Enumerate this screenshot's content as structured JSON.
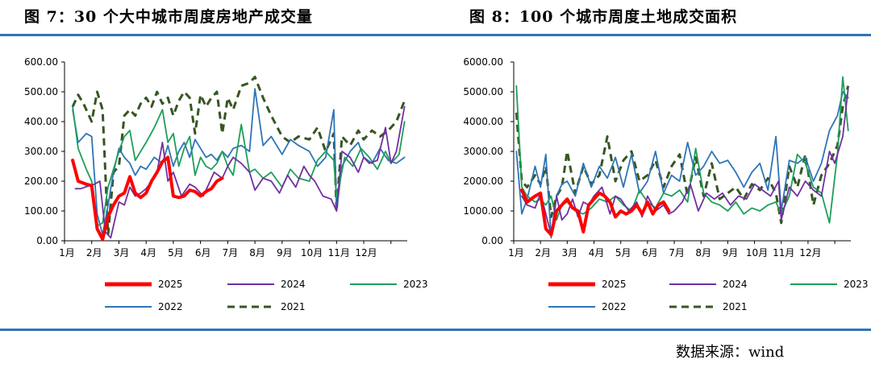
{
  "header": {
    "left_title": "图 7：30 个大中城市周度房地产成交量",
    "right_title": "图 8：100 个城市周度土地成交面积"
  },
  "footer": {
    "source": "数据来源：wind"
  },
  "colors": {
    "rule": "#2E75B6",
    "s2025": "#FF0000",
    "s2024": "#7030A0",
    "s2023": "#1E9E5A",
    "s2022": "#2E75B6",
    "s2021": "#375623"
  },
  "chart_data": [
    {
      "type": "line",
      "title": "图 7：30 个大中城市周度房地产成交量",
      "categories": [
        "1月",
        "2月",
        "3月",
        "4月",
        "5月",
        "6月",
        "7月",
        "8月",
        "9月",
        "10月",
        "11月",
        "12月"
      ],
      "ylim": [
        0,
        600
      ],
      "yticks": [
        "0.00",
        "100.00",
        "200.00",
        "300.00",
        "400.00",
        "500.00",
        "600.00"
      ],
      "xlabel": "",
      "ylabel": "",
      "legend": "bottom",
      "series": [
        {
          "name": "2025",
          "style": "thick",
          "x": [
            0.3,
            0.5,
            0.8,
            1.0,
            1.2,
            1.4,
            1.6,
            1.8,
            2.0,
            2.2,
            2.4,
            2.6,
            2.8,
            3.0,
            3.2,
            3.4,
            3.6,
            3.8,
            4.0,
            4.2,
            4.4,
            4.6,
            4.8,
            5.0,
            5.2,
            5.4,
            5.6,
            5.8
          ],
          "values": [
            270,
            200,
            190,
            185,
            40,
            5,
            80,
            120,
            150,
            160,
            215,
            160,
            145,
            160,
            200,
            230,
            265,
            280,
            150,
            145,
            150,
            170,
            165,
            150,
            165,
            175,
            200,
            210
          ]
        },
        {
          "name": "2024",
          "style": "solid",
          "x": [
            0.4,
            0.6,
            0.9,
            1.1,
            1.3,
            1.5,
            1.7,
            2.0,
            2.2,
            2.4,
            2.6,
            2.8,
            3.0,
            3.2,
            3.4,
            3.6,
            3.8,
            4.0,
            4.3,
            4.6,
            4.8,
            5.1,
            5.3,
            5.5,
            5.8,
            6.0,
            6.2,
            6.5,
            6.8,
            7.0,
            7.3,
            7.6,
            7.9,
            8.2,
            8.5,
            8.8,
            9.0,
            9.2,
            9.5,
            9.8,
            10.0,
            10.2,
            10.5,
            10.8,
            11.0,
            11.2,
            11.5,
            11.8,
            12.0,
            12.2,
            12.5
          ],
          "values": [
            175,
            175,
            185,
            190,
            200,
            30,
            10,
            130,
            120,
            180,
            150,
            160,
            175,
            200,
            230,
            330,
            200,
            230,
            150,
            190,
            180,
            150,
            190,
            230,
            210,
            250,
            280,
            260,
            230,
            170,
            210,
            200,
            160,
            220,
            180,
            250,
            220,
            200,
            150,
            140,
            100,
            300,
            280,
            230,
            280,
            260,
            270,
            380,
            260,
            300,
            450
          ]
        },
        {
          "name": "2023",
          "style": "solid",
          "x": [
            0.3,
            0.5,
            0.8,
            1.0,
            1.2,
            1.4,
            1.6,
            1.8,
            2.0,
            2.2,
            2.4,
            2.6,
            2.8,
            3.0,
            3.3,
            3.6,
            3.8,
            4.0,
            4.2,
            4.4,
            4.6,
            4.8,
            5.0,
            5.2,
            5.4,
            5.6,
            5.8,
            6.0,
            6.2,
            6.5,
            6.8,
            7.0,
            7.3,
            7.6,
            8.0,
            8.3,
            8.6,
            9.0,
            9.3,
            9.6,
            9.9,
            10.0,
            10.3,
            10.6,
            10.9,
            11.2,
            11.5,
            11.8,
            12.0,
            12.3,
            12.5
          ],
          "values": [
            450,
            310,
            240,
            200,
            50,
            60,
            180,
            240,
            300,
            350,
            370,
            270,
            300,
            330,
            380,
            440,
            330,
            360,
            250,
            310,
            350,
            220,
            280,
            250,
            240,
            260,
            300,
            250,
            220,
            390,
            230,
            240,
            210,
            230,
            180,
            240,
            210,
            200,
            270,
            300,
            270,
            140,
            280,
            250,
            310,
            280,
            240,
            300,
            260,
            290,
            400
          ]
        },
        {
          "name": "2022",
          "style": "solid",
          "x": [
            0.3,
            0.5,
            0.8,
            1.0,
            1.2,
            1.4,
            1.6,
            1.8,
            2.0,
            2.2,
            2.4,
            2.6,
            2.8,
            3.0,
            3.3,
            3.6,
            3.8,
            4.0,
            4.2,
            4.4,
            4.6,
            4.8,
            5.0,
            5.2,
            5.4,
            5.6,
            5.8,
            6.0,
            6.2,
            6.5,
            6.8,
            7.0,
            7.3,
            7.6,
            8.0,
            8.3,
            8.6,
            9.0,
            9.3,
            9.6,
            9.9,
            10.0,
            10.2,
            10.5,
            10.8,
            11.0,
            11.3,
            11.6,
            11.9,
            12.2,
            12.5
          ],
          "values": [
            440,
            330,
            360,
            350,
            90,
            20,
            120,
            230,
            310,
            280,
            260,
            220,
            250,
            240,
            280,
            260,
            320,
            250,
            300,
            330,
            280,
            340,
            310,
            280,
            290,
            270,
            300,
            280,
            310,
            320,
            300,
            510,
            320,
            350,
            290,
            340,
            320,
            300,
            250,
            280,
            440,
            100,
            250,
            300,
            330,
            280,
            260,
            310,
            270,
            260,
            280
          ]
        },
        {
          "name": "2021",
          "style": "dashed",
          "x": [
            0.3,
            0.5,
            0.7,
            1.0,
            1.2,
            1.4,
            1.6,
            1.8,
            2.0,
            2.2,
            2.4,
            2.6,
            2.8,
            3.0,
            3.2,
            3.4,
            3.6,
            3.8,
            4.0,
            4.2,
            4.4,
            4.6,
            4.8,
            5.0,
            5.2,
            5.4,
            5.6,
            5.8,
            6.0,
            6.2,
            6.5,
            6.8,
            7.0,
            7.3,
            7.6,
            8.0,
            8.3,
            8.6,
            9.0,
            9.3,
            9.6,
            9.9,
            10.0,
            10.2,
            10.5,
            10.8,
            11.0,
            11.3,
            11.6,
            11.9,
            12.2,
            12.5
          ],
          "values": [
            450,
            490,
            460,
            400,
            500,
            440,
            20,
            230,
            250,
            420,
            440,
            420,
            460,
            480,
            450,
            500,
            460,
            480,
            420,
            470,
            500,
            480,
            360,
            490,
            450,
            480,
            500,
            360,
            480,
            440,
            520,
            530,
            550,
            480,
            420,
            350,
            330,
            350,
            340,
            380,
            300,
            360,
            100,
            350,
            320,
            370,
            340,
            370,
            350,
            370,
            400,
            470
          ]
        }
      ]
    },
    {
      "type": "line",
      "title": "图 8：100 个城市周度土地成交面积",
      "categories": [
        "1月",
        "2月",
        "3月",
        "4月",
        "5月",
        "6月",
        "7月",
        "8月",
        "9月",
        "10月",
        "11月",
        "12月"
      ],
      "ylim": [
        0,
        6000
      ],
      "yticks": [
        "0.00",
        "1000.00",
        "2000.00",
        "3000.00",
        "4000.00",
        "5000.00",
        "6000.00"
      ],
      "xlabel": "",
      "ylabel": "",
      "legend": "bottom",
      "series": [
        {
          "name": "2025",
          "style": "thick",
          "x": [
            0.3,
            0.5,
            0.8,
            1.0,
            1.2,
            1.4,
            1.6,
            1.8,
            2.0,
            2.2,
            2.4,
            2.6,
            2.8,
            3.0,
            3.2,
            3.4,
            3.6,
            3.8,
            4.0,
            4.2,
            4.4,
            4.6,
            4.8,
            5.0,
            5.2,
            5.4,
            5.6,
            5.8
          ],
          "values": [
            1700,
            1300,
            1500,
            1600,
            400,
            200,
            1000,
            1200,
            1400,
            1100,
            1000,
            300,
            1200,
            1400,
            1600,
            1500,
            1300,
            800,
            1000,
            900,
            1000,
            1200,
            900,
            1300,
            900,
            1200,
            1300,
            1000
          ]
        },
        {
          "name": "2024",
          "style": "solid",
          "x": [
            0.3,
            0.5,
            0.8,
            1.0,
            1.2,
            1.4,
            1.6,
            1.8,
            2.0,
            2.2,
            2.4,
            2.6,
            2.8,
            3.0,
            3.3,
            3.6,
            3.8,
            4.0,
            4.3,
            4.6,
            4.8,
            5.0,
            5.3,
            5.6,
            5.8,
            6.0,
            6.3,
            6.6,
            6.9,
            7.2,
            7.5,
            7.8,
            8.1,
            8.4,
            8.7,
            9.0,
            9.3,
            9.6,
            9.9,
            10.0,
            10.3,
            10.6,
            10.9,
            11.2,
            11.5,
            11.8,
            12.0,
            12.3,
            12.5
          ],
          "values": [
            1500,
            1200,
            1100,
            1600,
            900,
            200,
            1500,
            700,
            900,
            1400,
            800,
            1300,
            1200,
            1500,
            1800,
            900,
            1500,
            1400,
            1000,
            1300,
            800,
            1500,
            1000,
            1200,
            900,
            1000,
            1300,
            1900,
            1000,
            1600,
            1400,
            1600,
            1200,
            1500,
            1400,
            1900,
            1700,
            1500,
            2000,
            700,
            1800,
            1500,
            2000,
            1700,
            1500,
            3000,
            2600,
            3500,
            5100
          ]
        },
        {
          "name": "2023",
          "style": "solid",
          "x": [
            0.1,
            0.3,
            0.5,
            0.8,
            1.0,
            1.2,
            1.4,
            1.6,
            1.8,
            2.0,
            2.3,
            2.6,
            2.9,
            3.2,
            3.5,
            3.8,
            4.1,
            4.4,
            4.7,
            5.0,
            5.3,
            5.6,
            5.9,
            6.2,
            6.5,
            6.8,
            7.1,
            7.4,
            7.7,
            8.0,
            8.3,
            8.6,
            8.9,
            9.2,
            9.5,
            9.8,
            10.0,
            10.3,
            10.6,
            10.9,
            11.2,
            11.5,
            11.8,
            12.1,
            12.3,
            12.5
          ],
          "values": [
            5200,
            1800,
            1500,
            1300,
            1400,
            1200,
            1500,
            700,
            1200,
            1300,
            1000,
            900,
            1100,
            1400,
            1300,
            1500,
            1200,
            1000,
            1700,
            1300,
            1100,
            1600,
            1500,
            1700,
            1300,
            3100,
            1600,
            1300,
            1200,
            1000,
            1300,
            900,
            1100,
            1000,
            1200,
            1300,
            900,
            1500,
            2900,
            2600,
            1800,
            1600,
            600,
            2900,
            5500,
            3700
          ]
        },
        {
          "name": "2022",
          "style": "solid",
          "x": [
            0.1,
            0.3,
            0.5,
            0.8,
            1.0,
            1.2,
            1.4,
            1.6,
            1.8,
            2.0,
            2.3,
            2.6,
            2.9,
            3.2,
            3.5,
            3.8,
            4.1,
            4.4,
            4.7,
            5.0,
            5.3,
            5.6,
            5.9,
            6.2,
            6.5,
            6.8,
            7.1,
            7.4,
            7.7,
            8.0,
            8.3,
            8.6,
            8.9,
            9.2,
            9.5,
            9.8,
            10.0,
            10.3,
            10.6,
            10.9,
            11.2,
            11.5,
            11.8,
            12.1,
            12.3,
            12.5
          ],
          "values": [
            3000,
            900,
            1400,
            2500,
            1800,
            2900,
            100,
            1500,
            1900,
            2000,
            1500,
            2600,
            1800,
            2500,
            2100,
            2800,
            1800,
            2900,
            1600,
            2000,
            3000,
            1600,
            2200,
            2000,
            3300,
            2200,
            2500,
            3000,
            2600,
            2700,
            2300,
            1800,
            2300,
            2600,
            1700,
            3500,
            1000,
            2700,
            2600,
            2800,
            2000,
            2600,
            3700,
            4200,
            5000,
            4800
          ]
        },
        {
          "name": "2021",
          "style": "dashed",
          "x": [
            0.1,
            0.3,
            0.5,
            0.8,
            1.0,
            1.2,
            1.4,
            1.6,
            1.8,
            2.0,
            2.3,
            2.6,
            2.9,
            3.2,
            3.5,
            3.8,
            4.1,
            4.4,
            4.7,
            5.0,
            5.3,
            5.6,
            5.9,
            6.2,
            6.5,
            6.8,
            7.1,
            7.4,
            7.7,
            8.0,
            8.3,
            8.6,
            8.9,
            9.2,
            9.5,
            9.8,
            10.0,
            10.3,
            10.6,
            10.9,
            11.2,
            11.5,
            11.8,
            12.1,
            12.3,
            12.5
          ],
          "values": [
            4300,
            2000,
            1800,
            2200,
            1900,
            2500,
            800,
            1500,
            1800,
            3000,
            1600,
            2500,
            1900,
            2200,
            3500,
            2000,
            2700,
            3000,
            2000,
            2200,
            2700,
            1800,
            2500,
            2900,
            1500,
            2800,
            1500,
            2600,
            1400,
            1600,
            1800,
            1400,
            1900,
            1700,
            2100,
            1600,
            600,
            2500,
            1800,
            2900,
            1200,
            2200,
            2600,
            3200,
            4500,
            5200
          ]
        }
      ]
    }
  ]
}
